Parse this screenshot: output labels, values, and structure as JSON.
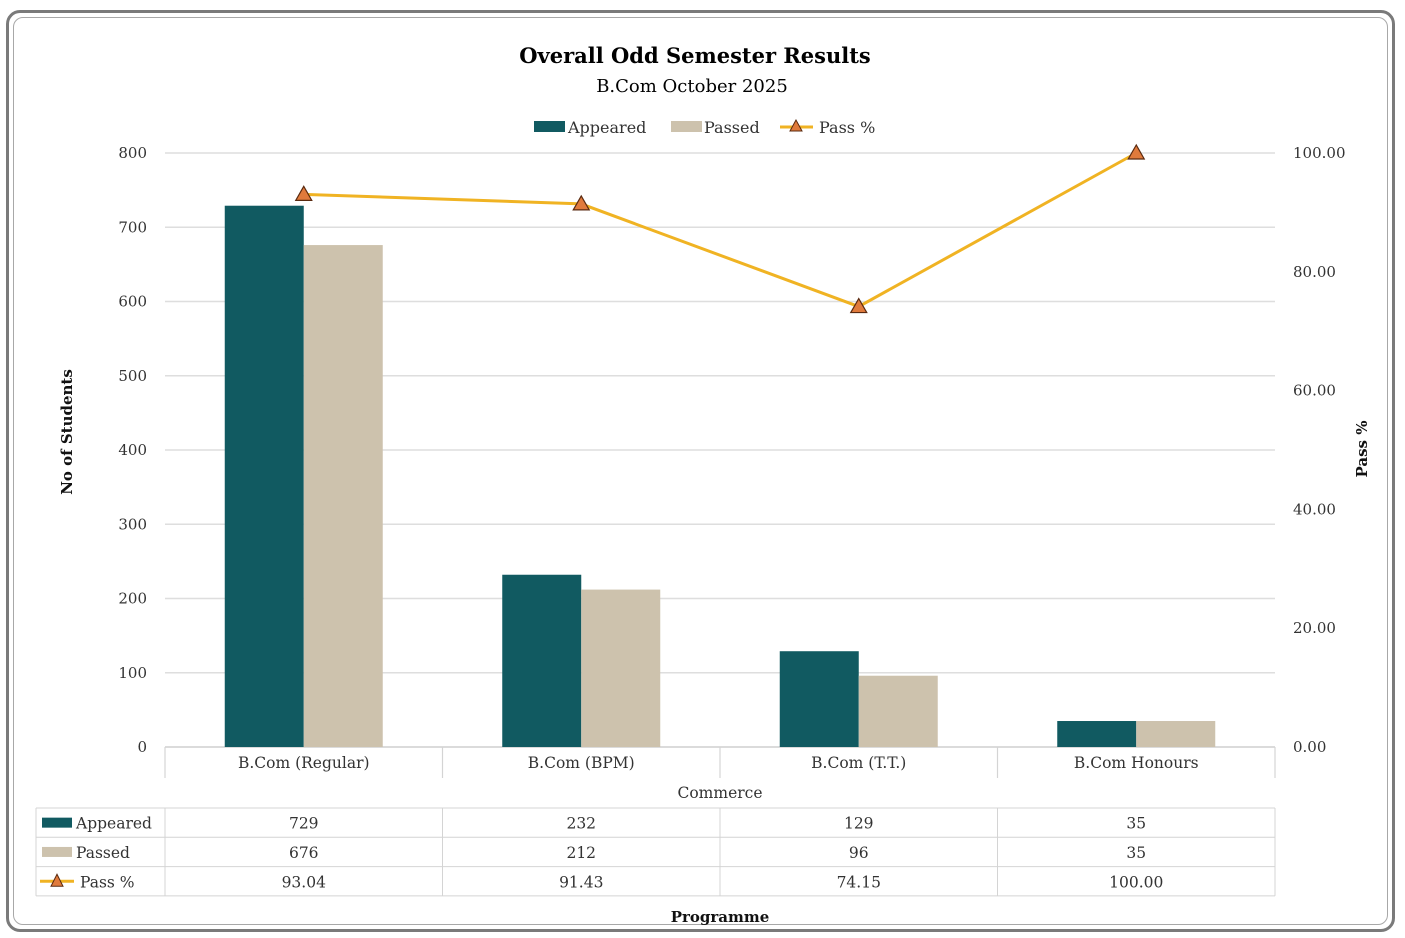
{
  "chart_data": {
    "type": "bar",
    "title": "Overall Odd Semester Results",
    "subtitle": "B.Com October 2025",
    "group_label": "Commerce",
    "xlabel": "Programme",
    "ylabel": "No of Students",
    "y2label": "Pass %",
    "categories": [
      "B.Com (Regular)",
      "B.Com (BPM)",
      "B.Com (T.T.)",
      "B.Com Honours"
    ],
    "series": [
      {
        "name": "Appeared",
        "kind": "bar",
        "axis": "left",
        "color": "#115a61",
        "values": [
          729,
          232,
          129,
          35
        ]
      },
      {
        "name": "Passed",
        "kind": "bar",
        "axis": "left",
        "color": "#cdc2ad",
        "values": [
          676,
          212,
          96,
          35
        ]
      },
      {
        "name": "Pass %",
        "kind": "line",
        "axis": "right",
        "color": "#f0b323",
        "marker_color": "#e07a3c",
        "values": [
          93.04,
          91.43,
          74.15,
          100.0
        ]
      }
    ],
    "table_values": {
      "Appeared": [
        "729",
        "232",
        "129",
        "35"
      ],
      "Passed": [
        "676",
        "212",
        "96",
        "35"
      ],
      "Pass %": [
        "93.04",
        "91.43",
        "74.15",
        "100.00"
      ]
    },
    "ylim": [
      0,
      800
    ],
    "y_ticks": [
      "0",
      "100",
      "200",
      "300",
      "400",
      "500",
      "600",
      "700",
      "800"
    ],
    "y2lim": [
      0,
      100
    ],
    "y2_ticks": [
      "0.00",
      "20.00",
      "40.00",
      "60.00",
      "80.00",
      "100.00"
    ],
    "legend_position": "top-center",
    "grid": true
  }
}
